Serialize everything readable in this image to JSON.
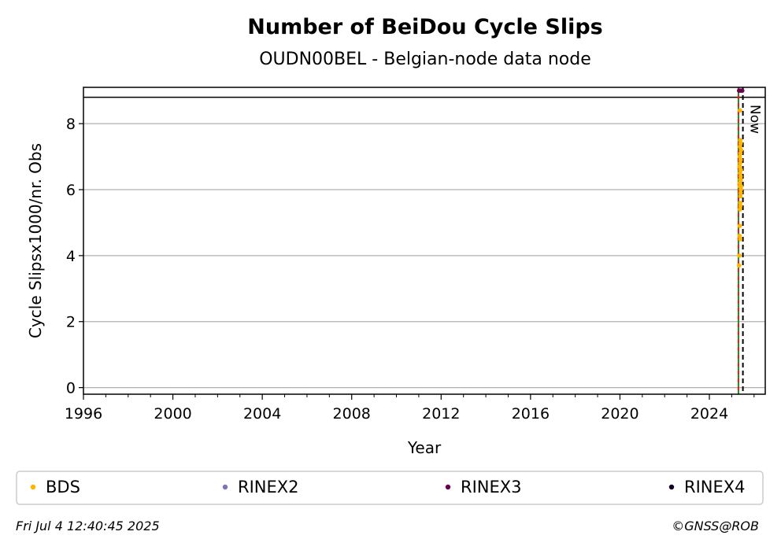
{
  "chart_data": {
    "type": "scatter",
    "title": "Number of BeiDou Cycle Slips",
    "subtitle": "OUDN00BEL - Belgian-node data node",
    "xlabel": "Year",
    "ylabel": "Cycle Slipsx1000/nr. Obs",
    "xlim": [
      1996,
      2026.5
    ],
    "ylim": [
      -0.2,
      9.1
    ],
    "x_ticks": [
      1996,
      2000,
      2004,
      2008,
      2012,
      2016,
      2020,
      2024
    ],
    "y_ticks": [
      0,
      2,
      4,
      6,
      8
    ],
    "grid": "horizontal",
    "top_reference_y": 8.8,
    "start_marker_x": 2025.3,
    "now_marker_x": 2025.5,
    "now_label": "Now",
    "legend_position": "bottom",
    "series": [
      {
        "name": "BDS",
        "color": "#ffb400",
        "x": [
          2025.33,
          2025.34,
          2025.35,
          2025.36,
          2025.37,
          2025.38,
          2025.39,
          2025.4,
          2025.41,
          2025.42,
          2025.36,
          2025.38,
          2025.4,
          2025.37,
          2025.39,
          2025.41,
          2025.35,
          2025.38,
          2025.4,
          2025.36,
          2025.39,
          2025.42,
          2025.37,
          2025.4,
          2025.38,
          2025.36,
          2025.41,
          2025.39,
          2025.37,
          2025.38
        ],
        "y": [
          3.7,
          4.0,
          4.6,
          4.9,
          5.4,
          5.6,
          5.8,
          5.9,
          6.0,
          6.1,
          6.2,
          6.3,
          6.4,
          6.5,
          6.6,
          6.6,
          6.7,
          6.8,
          6.9,
          7.0,
          7.1,
          7.2,
          7.3,
          7.4,
          7.5,
          6.1,
          6.3,
          5.5,
          8.4,
          4.5
        ]
      },
      {
        "name": "RINEX2",
        "color": "#8074b8",
        "x": [],
        "y": []
      },
      {
        "name": "RINEX3",
        "color": "#6a0050",
        "x": [
          2025.33,
          2025.4,
          2025.47
        ],
        "y": [
          9.0,
          9.0,
          9.0
        ]
      },
      {
        "name": "RINEX4",
        "color": "#1a0020",
        "x": [],
        "y": []
      }
    ]
  },
  "footer": {
    "timestamp": "Fri Jul  4 12:40:45 2025",
    "credit": "©GNSS@ROB"
  }
}
